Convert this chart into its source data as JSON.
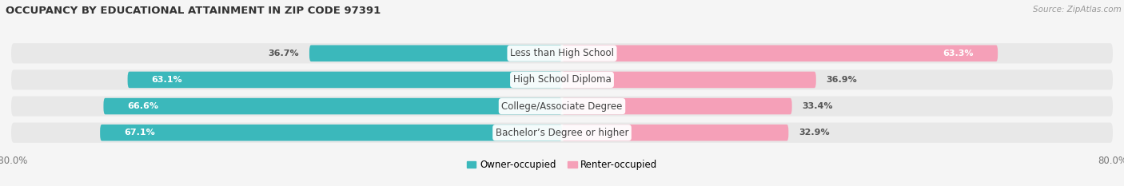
{
  "title": "OCCUPANCY BY EDUCATIONAL ATTAINMENT IN ZIP CODE 97391",
  "source": "Source: ZipAtlas.com",
  "categories": [
    "Less than High School",
    "High School Diploma",
    "College/Associate Degree",
    "Bachelor’s Degree or higher"
  ],
  "owner_values": [
    36.7,
    63.1,
    66.6,
    67.1
  ],
  "renter_values": [
    63.3,
    36.9,
    33.4,
    32.9
  ],
  "owner_color": "#3bb8bb",
  "renter_color": "#f5a0b8",
  "row_bg_color": "#e8e8e8",
  "page_bg_color": "#f5f5f5",
  "xlim_left": -80.0,
  "xlim_right": 80.0,
  "bar_height": 0.62,
  "label_fontsize": 8.5,
  "title_fontsize": 9.5,
  "source_fontsize": 7.5,
  "value_fontsize": 8.0
}
